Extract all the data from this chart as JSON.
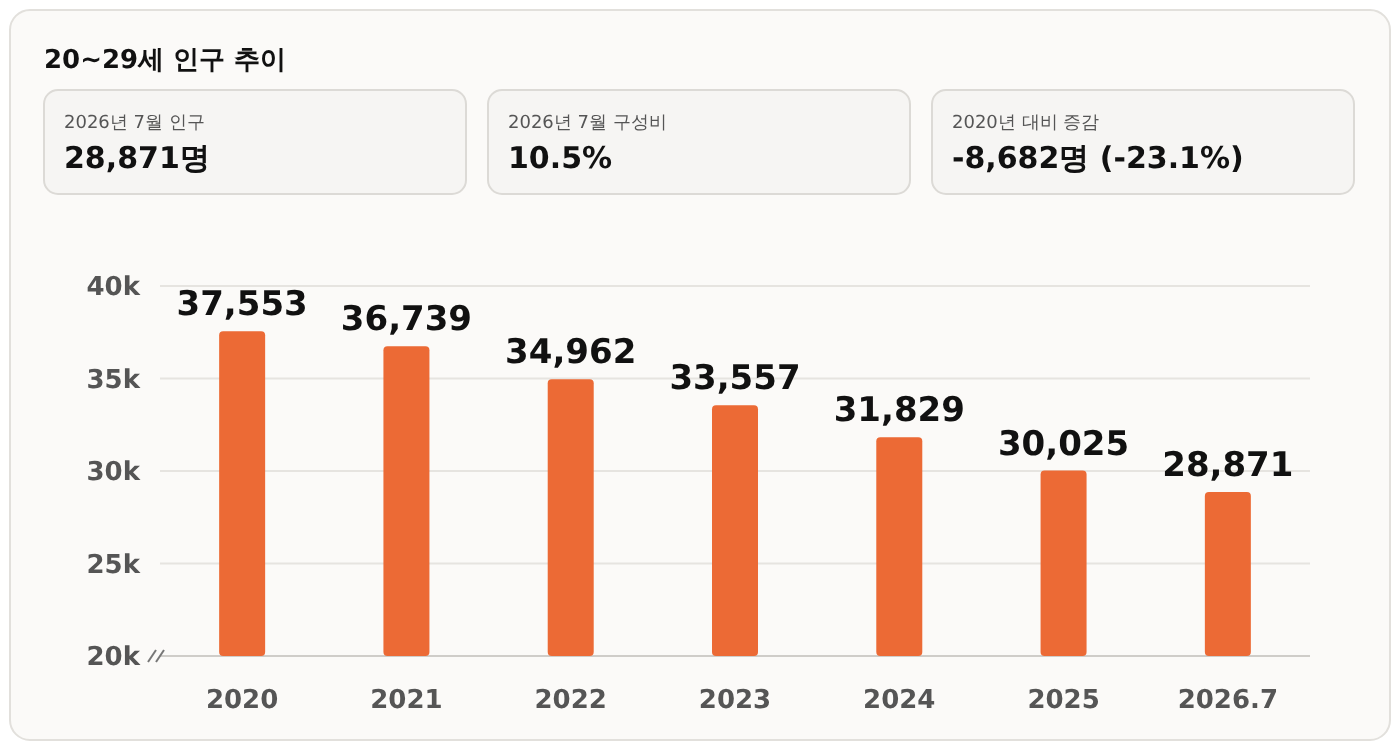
{
  "chart_data": {
    "type": "bar",
    "title": "20~29세 인구 추이",
    "annotations": [
      "2026년 7월 인구",
      "28,871명",
      "2026년 7월 구성비",
      "10.5%",
      "2020년 대비 증감",
      "-8,682명 (-23.1%)"
    ],
    "categories": [
      "2020",
      "2021",
      "2022",
      "2023",
      "2024",
      "2025",
      "2026.7"
    ],
    "values": [
      37553,
      36739,
      34962,
      33557,
      31829,
      30025,
      28871
    ],
    "color": "#ec6a35",
    "ylim": [
      20000,
      40000
    ],
    "yticks": [
      {
        "value": 20000,
        "label": "20k"
      },
      {
        "value": 25000,
        "label": "25k"
      },
      {
        "value": 30000,
        "label": "30k"
      },
      {
        "value": 35000,
        "label": "35k"
      },
      {
        "value": 40000,
        "label": "40k"
      }
    ],
    "grid": "y",
    "value_labels": [
      "37,553",
      "36,739",
      "34,962",
      "33,557",
      "31,829",
      "30,025",
      "28,871"
    ]
  }
}
